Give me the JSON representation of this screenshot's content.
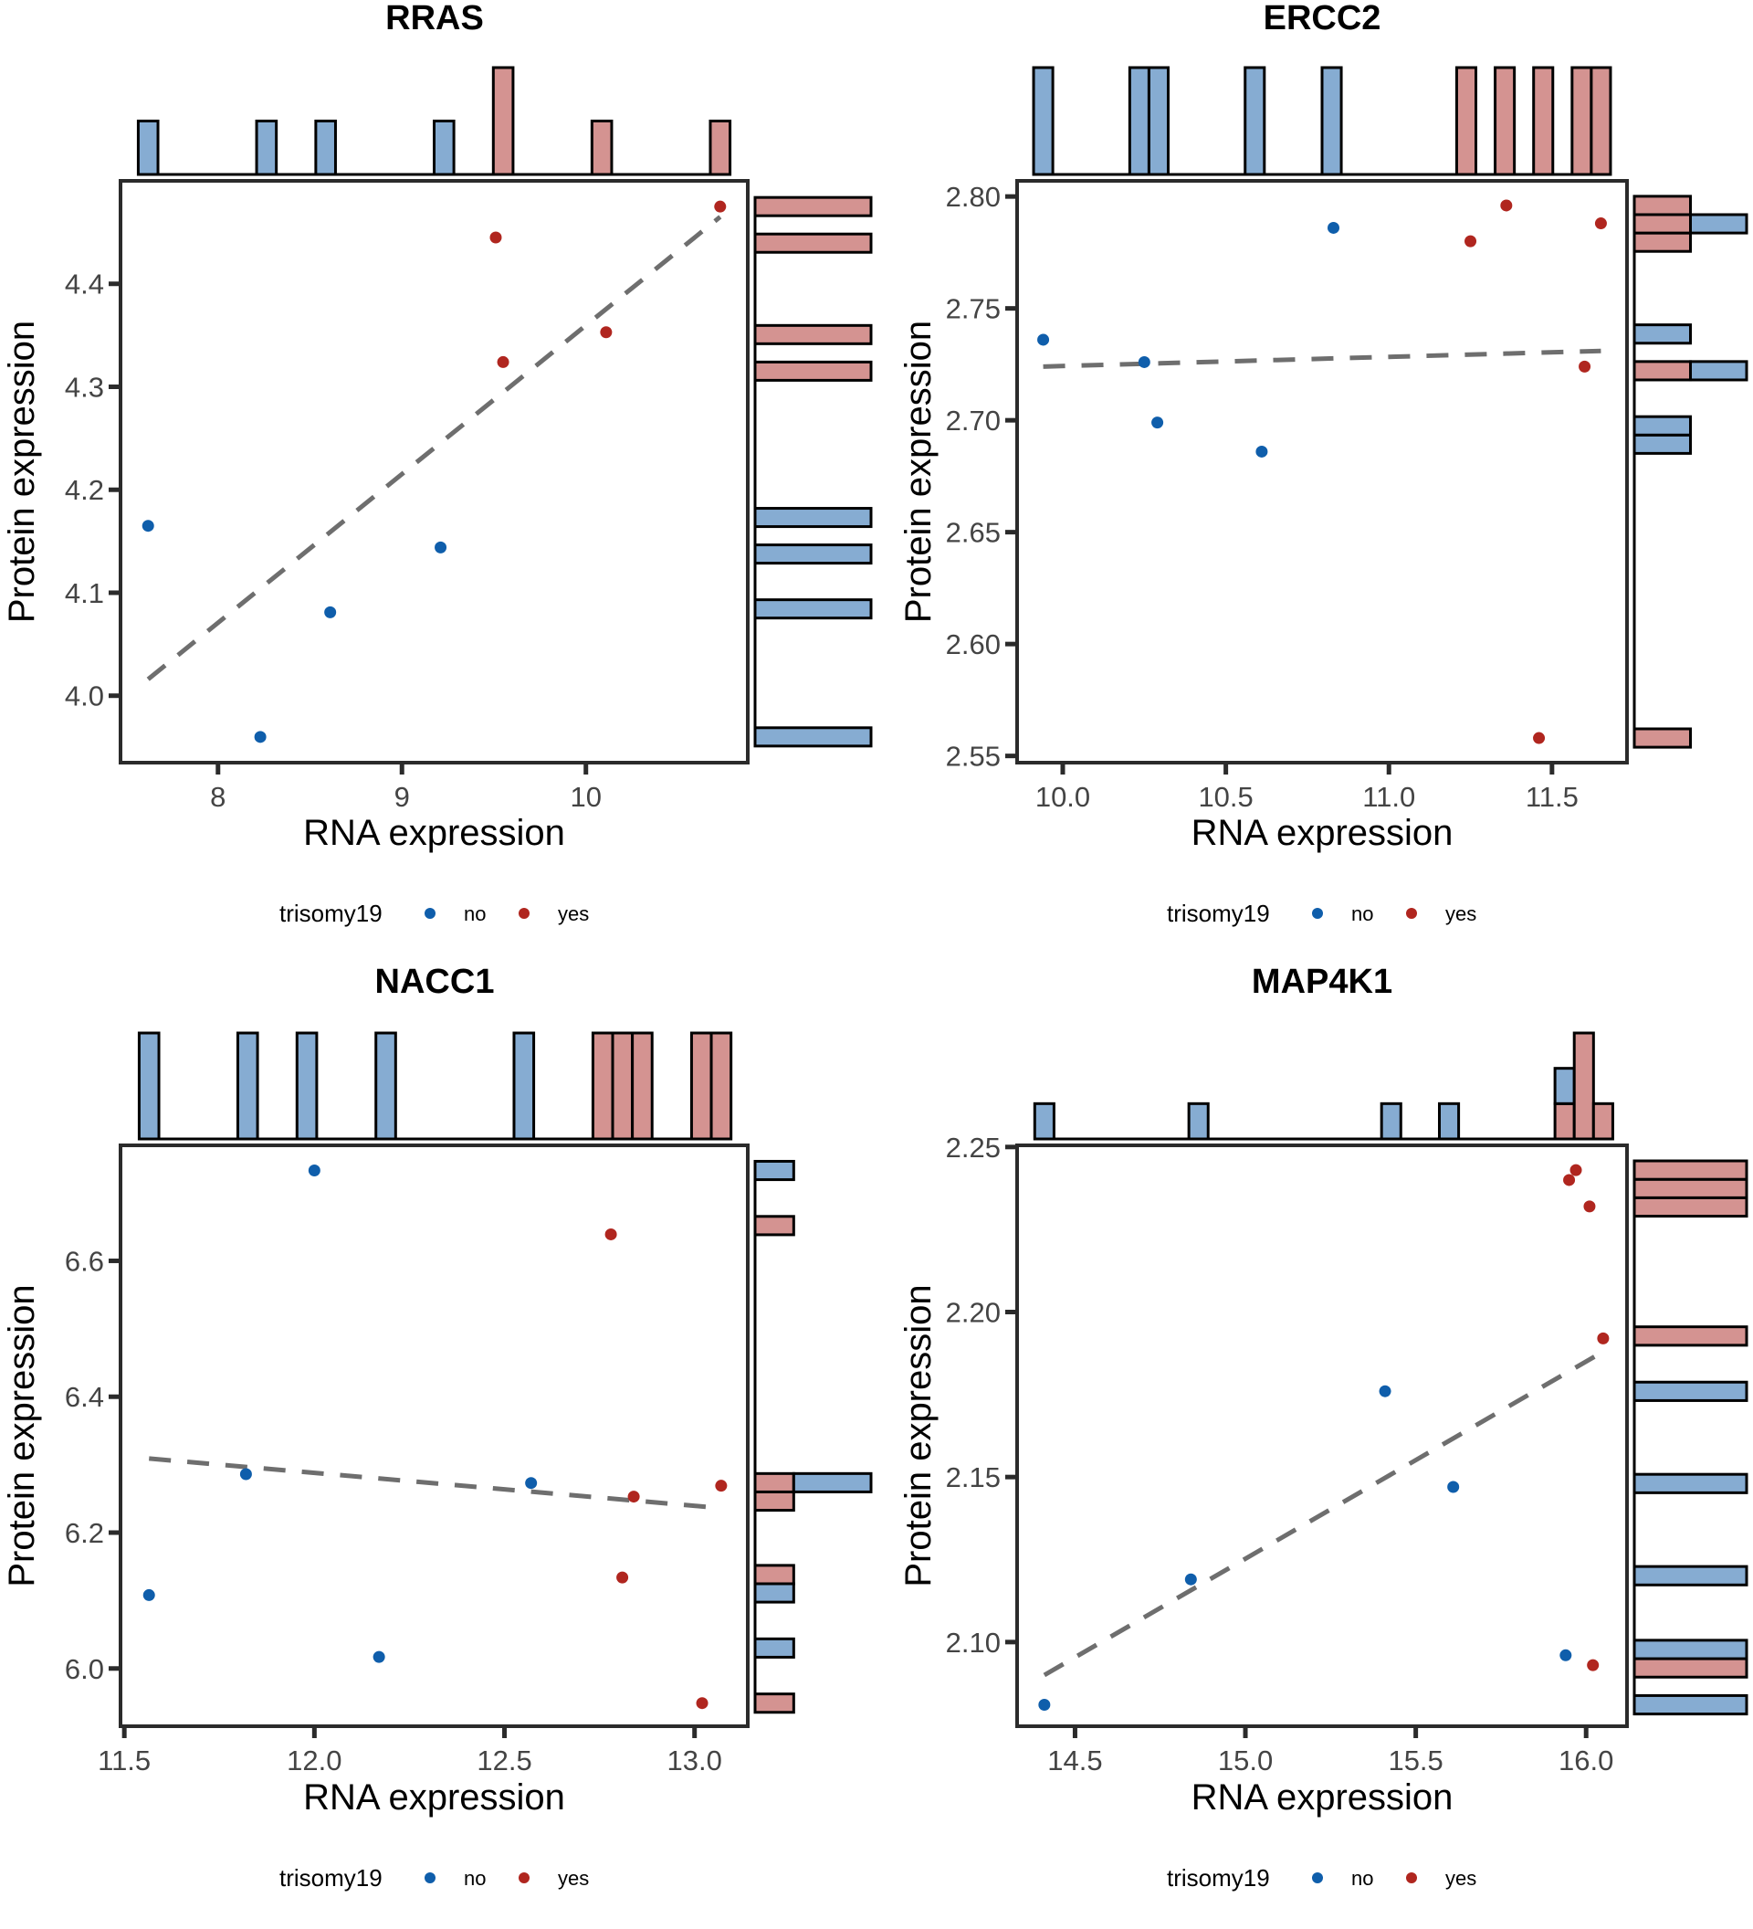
{
  "legend": {
    "title": "trisomy19",
    "items": [
      {
        "key": "no",
        "label": "no",
        "point_color": "#0F5EAB",
        "hist_fill": "#86ACD2"
      },
      {
        "key": "yes",
        "label": "yes",
        "point_color": "#B0261F",
        "hist_fill": "#D49391"
      }
    ]
  },
  "chart_data": [
    {
      "type": "scatter",
      "title": "RRAS",
      "xlabel": "RNA expression",
      "ylabel": "Protein expression",
      "xlim": [
        7.47,
        10.88
      ],
      "ylim": [
        3.935,
        4.5
      ],
      "xticks": [
        8,
        9,
        10
      ],
      "xtick_labels": [
        "8",
        "9",
        "10"
      ],
      "yticks": [
        4.0,
        4.1,
        4.2,
        4.3,
        4.4
      ],
      "ytick_labels": [
        "4.0",
        "4.1",
        "4.2",
        "4.3",
        "4.4"
      ],
      "grid": false,
      "legend_position": "bottom",
      "marginal": "histogram",
      "series": [
        {
          "name": "no",
          "points": [
            [
              7.62,
              4.165
            ],
            [
              8.23,
              3.96
            ],
            [
              8.61,
              4.081
            ],
            [
              9.21,
              4.144
            ]
          ]
        },
        {
          "name": "yes",
          "points": [
            [
              9.51,
              4.445
            ],
            [
              9.55,
              4.324
            ],
            [
              10.11,
              4.353
            ],
            [
              10.73,
              4.475
            ]
          ]
        }
      ],
      "fit_line": {
        "style": "dashed",
        "x": [
          7.62,
          10.73
        ],
        "y": [
          4.016,
          4.465
        ]
      }
    },
    {
      "type": "scatter",
      "title": "ERCC2",
      "xlabel": "RNA expression",
      "ylabel": "Protein expression",
      "xlim": [
        9.86,
        11.73
      ],
      "ylim": [
        2.547,
        2.807
      ],
      "xticks": [
        10.0,
        10.5,
        11.0,
        11.5
      ],
      "xtick_labels": [
        "10.0",
        "10.5",
        "11.0",
        "11.5"
      ],
      "yticks": [
        2.55,
        2.6,
        2.65,
        2.7,
        2.75,
        2.8
      ],
      "ytick_labels": [
        "2.55",
        "2.60",
        "2.65",
        "2.70",
        "2.75",
        "2.80"
      ],
      "grid": false,
      "legend_position": "bottom",
      "marginal": "histogram",
      "series": [
        {
          "name": "no",
          "points": [
            [
              9.94,
              2.736
            ],
            [
              10.25,
              2.726
            ],
            [
              10.29,
              2.699
            ],
            [
              10.61,
              2.686
            ],
            [
              10.83,
              2.786
            ]
          ]
        },
        {
          "name": "yes",
          "points": [
            [
              11.25,
              2.78
            ],
            [
              11.36,
              2.796
            ],
            [
              11.65,
              2.788
            ],
            [
              11.6,
              2.724
            ],
            [
              11.46,
              2.558
            ]
          ]
        }
      ],
      "fit_line": {
        "style": "dashed",
        "x": [
          9.94,
          11.65
        ],
        "y": [
          2.724,
          2.731
        ]
      }
    },
    {
      "type": "scatter",
      "title": "NACC1",
      "xlabel": "RNA expression",
      "ylabel": "Protein expression",
      "xlim": [
        11.49,
        13.14
      ],
      "ylim": [
        5.915,
        6.77
      ],
      "xticks": [
        11.5,
        12.0,
        12.5,
        13.0
      ],
      "xtick_labels": [
        "11.5",
        "12.0",
        "12.5",
        "13.0"
      ],
      "yticks": [
        6.0,
        6.2,
        6.4,
        6.6
      ],
      "ytick_labels": [
        "6.0",
        "6.2",
        "6.4",
        "6.6"
      ],
      "grid": false,
      "legend_position": "bottom",
      "marginal": "histogram",
      "series": [
        {
          "name": "no",
          "points": [
            [
              11.565,
              6.108
            ],
            [
              11.82,
              6.286
            ],
            [
              12.0,
              6.733
            ],
            [
              12.17,
              6.017
            ],
            [
              12.57,
              6.273
            ]
          ]
        },
        {
          "name": "yes",
          "points": [
            [
              12.78,
              6.639
            ],
            [
              12.84,
              6.253
            ],
            [
              12.81,
              6.134
            ],
            [
              13.07,
              6.269
            ],
            [
              13.02,
              5.949
            ]
          ]
        }
      ],
      "fit_line": {
        "style": "dashed",
        "x": [
          11.565,
          13.03
        ],
        "y": [
          6.309,
          6.238
        ]
      }
    },
    {
      "type": "scatter",
      "title": "MAP4K1",
      "xlabel": "RNA expression",
      "ylabel": "Protein expression",
      "xlim": [
        14.33,
        16.12
      ],
      "ylim": [
        2.0745,
        2.2505
      ],
      "xticks": [
        14.5,
        15.0,
        15.5,
        16.0
      ],
      "xtick_labels": [
        "14.5",
        "15.0",
        "15.5",
        "16.0"
      ],
      "yticks": [
        2.1,
        2.15,
        2.2,
        2.25
      ],
      "ytick_labels": [
        "2.10",
        "2.15",
        "2.20",
        "2.25"
      ],
      "grid": false,
      "legend_position": "bottom",
      "marginal": "histogram",
      "series": [
        {
          "name": "no",
          "points": [
            [
              14.41,
              2.081
            ],
            [
              14.84,
              2.119
            ],
            [
              15.41,
              2.176
            ],
            [
              15.61,
              2.147
            ],
            [
              15.94,
              2.096
            ]
          ]
        },
        {
          "name": "yes",
          "points": [
            [
              15.95,
              2.24
            ],
            [
              15.97,
              2.243
            ],
            [
              16.01,
              2.232
            ],
            [
              16.05,
              2.192
            ],
            [
              16.02,
              2.093
            ]
          ]
        }
      ],
      "fit_line": {
        "style": "dashed",
        "x": [
          14.41,
          16.05
        ],
        "y": [
          2.09,
          2.188
        ]
      }
    }
  ]
}
